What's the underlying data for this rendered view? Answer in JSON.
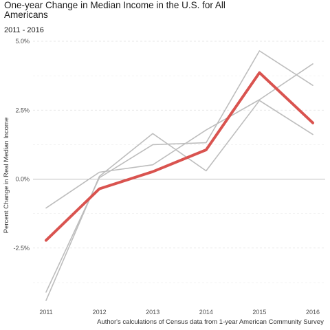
{
  "chart_data": {
    "type": "line",
    "title": "One-year Change in Median Income in the U.S. for All Americans",
    "subtitle": "2011 - 2016",
    "ylabel": "Percent Change in Real Median Income",
    "xlabel": "Author's calculations of Census data from 1-year American Community Survey",
    "x": [
      "2011",
      "2012",
      "2013",
      "2014",
      "2015",
      "2016"
    ],
    "ylim": [
      -4.6,
      5.0
    ],
    "yticks": [
      5.0,
      2.5,
      0.0,
      -2.5
    ],
    "ytick_labels": [
      "5.0%",
      "2.5%",
      "0.0%",
      "-2.5%"
    ],
    "grid": true,
    "series": [
      {
        "values": [
          -1.05,
          0.25,
          0.52,
          1.78,
          2.88,
          4.18
        ],
        "color": "#bdbdbd"
      },
      {
        "values": [
          -4.1,
          0.05,
          1.25,
          1.32,
          4.65,
          3.4
        ],
        "color": "#bdbdbd"
      },
      {
        "values": [
          -4.4,
          0.1,
          1.65,
          0.3,
          2.85,
          1.62
        ],
        "color": "#bdbdbd"
      },
      {
        "values": [
          -2.22,
          -0.35,
          0.27,
          1.06,
          3.86,
          2.04
        ],
        "color": "#d9534f",
        "highlight": true
      }
    ]
  }
}
